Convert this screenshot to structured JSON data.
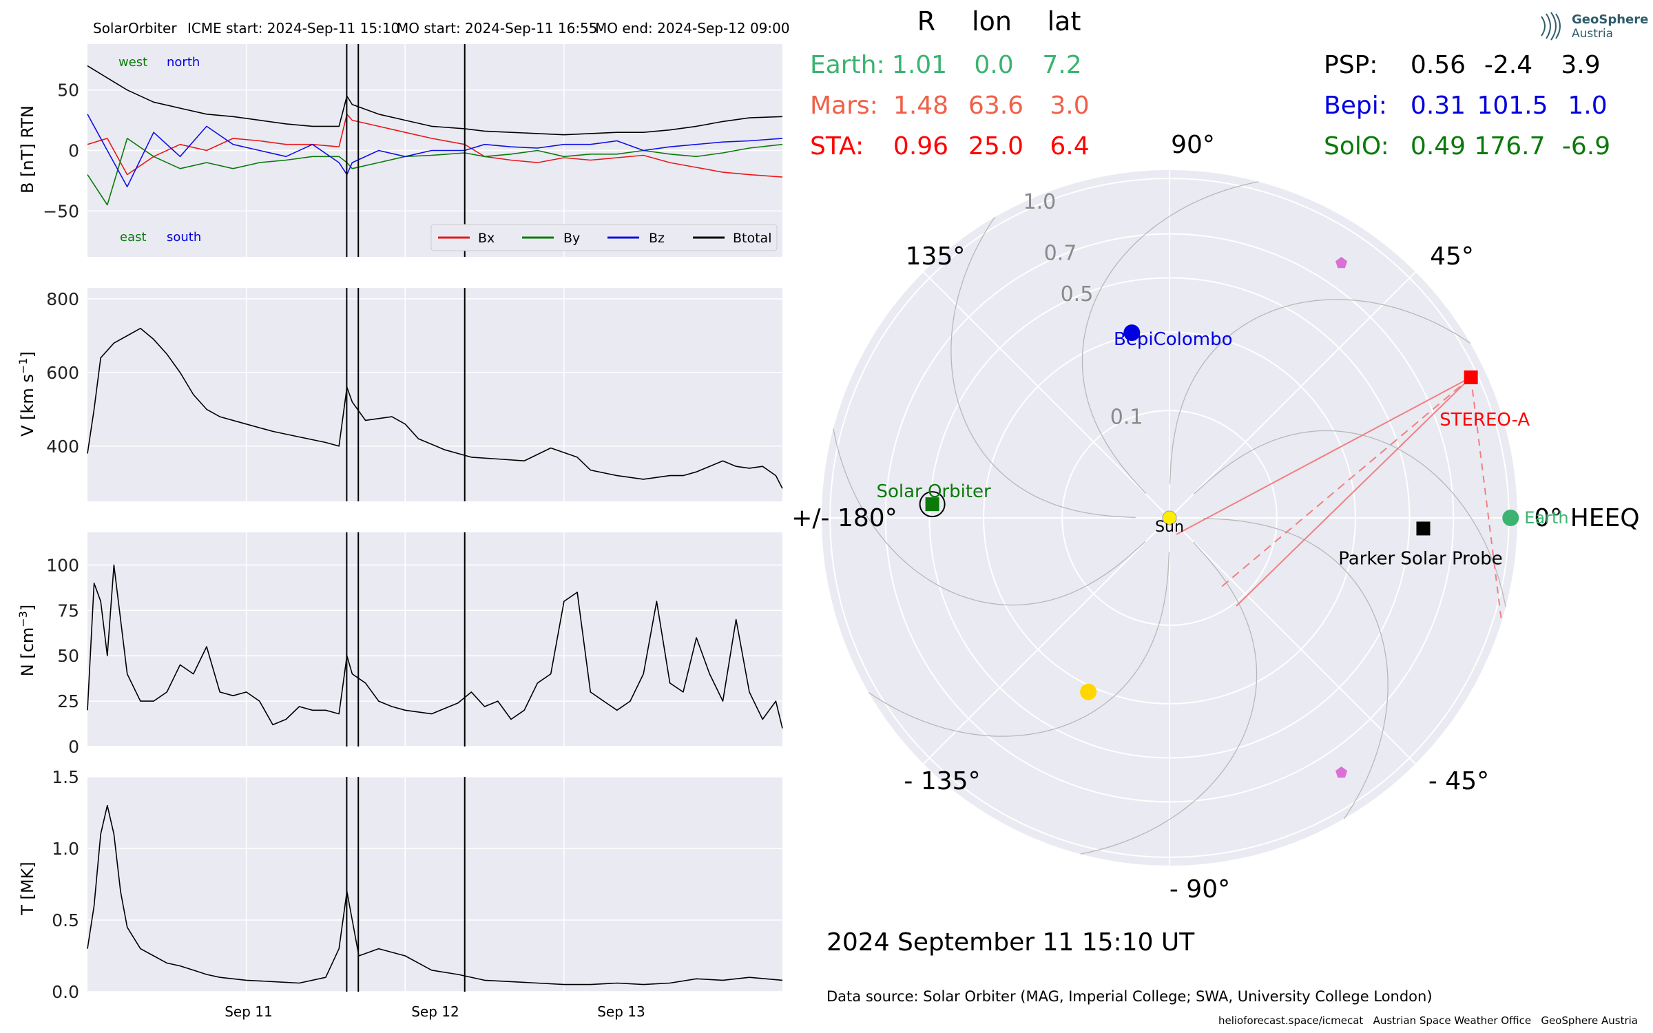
{
  "header": {
    "instrument": "SolarOrbiter",
    "icme_start": "ICME start: 2024-Sep-11 15:10",
    "mo_start": "MO start: 2024-Sep-11 16:55",
    "mo_end": "MO end: 2024-Sep-12 09:00"
  },
  "timeseries": {
    "x_ticks": [
      "Sep 11",
      "Sep 12",
      "Sep 13"
    ],
    "event_lines_hours": [
      39.17,
      40.92,
      57.0
    ],
    "b_panel": {
      "ylabel": "B [nT] RTN",
      "yticks": [
        "50",
        "0",
        "−50"
      ],
      "ylim": [
        -88,
        88
      ],
      "corner_labels": {
        "top_left": "west",
        "top_right": "north",
        "bottom_left": "east",
        "bottom_right": "south"
      },
      "legend": [
        "Bx",
        "By",
        "Bz",
        "Btotal"
      ]
    },
    "v_panel": {
      "ylabel_main": "V [km s",
      "ylabel_sup": "−1",
      "ylabel_end": "]",
      "yticks": [
        "800",
        "600",
        "400"
      ],
      "ylim": [
        250,
        830
      ]
    },
    "n_panel": {
      "ylabel_main": "N [cm",
      "ylabel_sup": "−3",
      "ylabel_end": "]",
      "yticks": [
        "100",
        "75",
        "50",
        "25",
        "0"
      ],
      "ylim": [
        0,
        118
      ]
    },
    "t_panel": {
      "ylabel": "T [MK]",
      "yticks": [
        "1.5",
        "1.0",
        "0.5",
        "0.0"
      ],
      "ylim": [
        0,
        1.5
      ]
    }
  },
  "chart_data": [
    {
      "type": "line",
      "title": "",
      "ylabel": "B [nT] RTN",
      "x_unit": "hours since 2024-Sep-10 00:00",
      "x_range": [
        0,
        105
      ],
      "series": [
        {
          "name": "Bx",
          "color": "#e6191a",
          "x": [
            0,
            3,
            6,
            10,
            14,
            18,
            22,
            26,
            30,
            34,
            38,
            39.2,
            40,
            44,
            48,
            52,
            57,
            60,
            64,
            68,
            72,
            76,
            80,
            84,
            88,
            92,
            96,
            100,
            105
          ],
          "values": [
            5,
            10,
            -20,
            -5,
            5,
            0,
            10,
            8,
            5,
            5,
            3,
            30,
            25,
            20,
            15,
            10,
            5,
            -5,
            -8,
            -10,
            -6,
            -8,
            -6,
            -4,
            -10,
            -14,
            -18,
            -20,
            -22
          ]
        },
        {
          "name": "By",
          "color": "#0b7a0b",
          "x": [
            0,
            3,
            6,
            10,
            14,
            18,
            22,
            26,
            30,
            34,
            38,
            39.2,
            40,
            44,
            48,
            52,
            57,
            60,
            64,
            68,
            72,
            76,
            80,
            84,
            88,
            92,
            96,
            100,
            105
          ],
          "values": [
            -20,
            -45,
            10,
            -5,
            -15,
            -10,
            -15,
            -10,
            -8,
            -5,
            -5,
            -10,
            -15,
            -10,
            -5,
            -4,
            -2,
            -5,
            -3,
            0,
            -5,
            -3,
            -3,
            0,
            -3,
            -5,
            -2,
            2,
            5
          ]
        },
        {
          "name": "Bz",
          "color": "#1010e8",
          "x": [
            0,
            3,
            6,
            10,
            14,
            18,
            22,
            26,
            30,
            34,
            38,
            39.2,
            40,
            44,
            48,
            52,
            57,
            60,
            64,
            68,
            72,
            76,
            80,
            84,
            88,
            92,
            96,
            100,
            105
          ],
          "values": [
            30,
            0,
            -30,
            15,
            -5,
            20,
            5,
            0,
            -5,
            5,
            -10,
            -20,
            -10,
            0,
            -5,
            0,
            0,
            5,
            3,
            2,
            5,
            5,
            8,
            0,
            3,
            5,
            7,
            8,
            10
          ]
        },
        {
          "name": "Btotal",
          "color": "#000000",
          "x": [
            0,
            3,
            6,
            10,
            14,
            18,
            22,
            26,
            30,
            34,
            38,
            39.2,
            40,
            44,
            48,
            52,
            57,
            60,
            64,
            68,
            72,
            76,
            80,
            84,
            88,
            92,
            96,
            100,
            105
          ],
          "values": [
            70,
            60,
            50,
            40,
            35,
            30,
            28,
            25,
            22,
            20,
            20,
            45,
            38,
            30,
            25,
            20,
            18,
            16,
            15,
            14,
            13,
            14,
            15,
            15,
            17,
            20,
            24,
            27,
            28
          ]
        }
      ]
    },
    {
      "type": "line",
      "ylabel": "V [km s−1]",
      "x_unit": "hours since 2024-Sep-10 00:00",
      "series": [
        {
          "name": "",
          "color": "#000000",
          "x": [
            0,
            1,
            2,
            4,
            6,
            8,
            10,
            12,
            14,
            16,
            18,
            20,
            24,
            28,
            32,
            36,
            38,
            39.2,
            40,
            42,
            46,
            48,
            50,
            54,
            58,
            62,
            66,
            70,
            74,
            76,
            80,
            84,
            88,
            90,
            92,
            94,
            96,
            98,
            100,
            102,
            104,
            105
          ],
          "values": [
            380,
            500,
            640,
            680,
            700,
            720,
            690,
            650,
            600,
            540,
            500,
            480,
            460,
            440,
            425,
            410,
            400,
            560,
            520,
            470,
            480,
            460,
            420,
            390,
            370,
            365,
            360,
            395,
            370,
            335,
            320,
            310,
            320,
            320,
            330,
            345,
            360,
            345,
            340,
            345,
            320,
            285
          ]
        }
      ]
    },
    {
      "type": "line",
      "ylabel": "N [cm−3]",
      "x_unit": "hours since 2024-Sep-10 00:00",
      "series": [
        {
          "name": "",
          "color": "#000000",
          "x": [
            0,
            1,
            2,
            3,
            4,
            6,
            8,
            10,
            12,
            14,
            16,
            18,
            20,
            22,
            24,
            26,
            28,
            30,
            32,
            34,
            36,
            38,
            39.2,
            40,
            42,
            44,
            46,
            48,
            52,
            56,
            58,
            60,
            62,
            64,
            66,
            68,
            70,
            72,
            74,
            76,
            78,
            80,
            82,
            84,
            86,
            88,
            90,
            92,
            94,
            96,
            98,
            100,
            102,
            104,
            105
          ],
          "values": [
            20,
            90,
            80,
            50,
            100,
            40,
            25,
            25,
            30,
            45,
            40,
            55,
            30,
            28,
            30,
            25,
            12,
            15,
            22,
            20,
            20,
            18,
            50,
            40,
            35,
            25,
            22,
            20,
            18,
            24,
            30,
            22,
            25,
            15,
            20,
            35,
            40,
            80,
            85,
            30,
            25,
            20,
            25,
            40,
            80,
            35,
            30,
            60,
            40,
            25,
            70,
            30,
            15,
            25,
            10
          ]
        }
      ]
    },
    {
      "type": "line",
      "ylabel": "T [MK]",
      "x_unit": "hours since 2024-Sep-10 00:00",
      "series": [
        {
          "name": "",
          "color": "#000000",
          "x": [
            0,
            1,
            2,
            3,
            4,
            5,
            6,
            8,
            10,
            12,
            14,
            16,
            18,
            20,
            24,
            28,
            32,
            36,
            38,
            39.2,
            40,
            41,
            44,
            48,
            52,
            56,
            60,
            64,
            68,
            72,
            76,
            80,
            84,
            88,
            92,
            96,
            100,
            105
          ],
          "values": [
            0.3,
            0.6,
            1.1,
            1.3,
            1.1,
            0.7,
            0.45,
            0.3,
            0.25,
            0.2,
            0.18,
            0.15,
            0.12,
            0.1,
            0.08,
            0.07,
            0.06,
            0.1,
            0.3,
            0.7,
            0.5,
            0.25,
            0.3,
            0.25,
            0.15,
            0.12,
            0.08,
            0.07,
            0.06,
            0.05,
            0.05,
            0.06,
            0.05,
            0.06,
            0.09,
            0.08,
            0.1,
            0.08
          ]
        }
      ]
    },
    {
      "type": "scatter",
      "projection": "polar",
      "title": "",
      "r_ticks": [
        0.1,
        0.5,
        0.7,
        1.0
      ],
      "r_tick_labels": [
        "0.1",
        "0.5",
        "0.7",
        "1.0"
      ],
      "angle_labels": [
        {
          "deg": 0,
          "text": "0° HEEQ"
        },
        {
          "deg": 45,
          "text": "45°"
        },
        {
          "deg": 90,
          "text": "90°"
        },
        {
          "deg": 135,
          "text": "135°"
        },
        {
          "deg": 180,
          "text": "+/- 180°"
        },
        {
          "deg": -135,
          "text": "- 135°"
        },
        {
          "deg": -90,
          "text": "- 90°"
        },
        {
          "deg": -45,
          "text": "- 45°"
        }
      ],
      "bodies": [
        {
          "name": "Sun",
          "r": 0.0,
          "lon": 0,
          "color": "#ffee00",
          "marker": "circle"
        },
        {
          "name": "Earth",
          "r": 1.01,
          "lon": 0.0,
          "color": "#3cb371",
          "marker": "circle"
        },
        {
          "name": "STEREO-A",
          "r": 0.96,
          "lon": 25.0,
          "color": "#ff0000",
          "marker": "square"
        },
        {
          "name": "Parker Solar Probe",
          "r": 0.56,
          "lon": -2.4,
          "color": "#000000",
          "marker": "square"
        },
        {
          "name": "BepiColombo",
          "r": 0.31,
          "lon": 101.5,
          "color": "#0000e0",
          "marker": "circle"
        },
        {
          "name": "Solar Orbiter",
          "r": 0.49,
          "lon": 176.7,
          "color": "#0a7a0a",
          "marker": "square"
        },
        {
          "name": "",
          "r": 0.32,
          "lon": -115,
          "color": "#ffd700",
          "marker": "circle"
        },
        {
          "name": "",
          "r": 0.82,
          "lon": 56,
          "color": "#da70d6",
          "marker": "pentagon"
        },
        {
          "name": "",
          "r": 0.82,
          "lon": -56,
          "color": "#da70d6",
          "marker": "pentagon"
        }
      ]
    }
  ],
  "positions_table": {
    "header": [
      "R",
      "lon",
      "lat"
    ],
    "left_rows": [
      {
        "label": "Earth:",
        "R": "1.01",
        "lon": "0.0",
        "lat": "7.2",
        "color": "#3cb371"
      },
      {
        "label": "Mars:",
        "R": "1.48",
        "lon": "63.6",
        "lat": "3.0",
        "color": "#f06048"
      },
      {
        "label": "STA:",
        "R": "0.96",
        "lon": "25.0",
        "lat": "6.4",
        "color": "#ff0000"
      }
    ],
    "right_rows": [
      {
        "label": "PSP:",
        "R": "0.56",
        "lon": "-2.4",
        "lat": "3.9",
        "color": "#000000"
      },
      {
        "label": "Bepi:",
        "R": "0.31",
        "lon": "101.5",
        "lat": "1.0",
        "color": "#0000e0"
      },
      {
        "label": "SolO:",
        "R": "0.49",
        "lon": "176.7",
        "lat": "-6.9",
        "color": "#0a7a0a"
      }
    ]
  },
  "logo": {
    "line1": "GeoSphere",
    "line2": "Austria"
  },
  "timestamp": "2024 September 11  15:10 UT",
  "data_source": "Data source: Solar Orbiter (MAG, Imperial College; SWA, University College London)",
  "footer": "helioforecast.space/icmecat   Austrian Space Weather Office   GeoSphere Austria"
}
